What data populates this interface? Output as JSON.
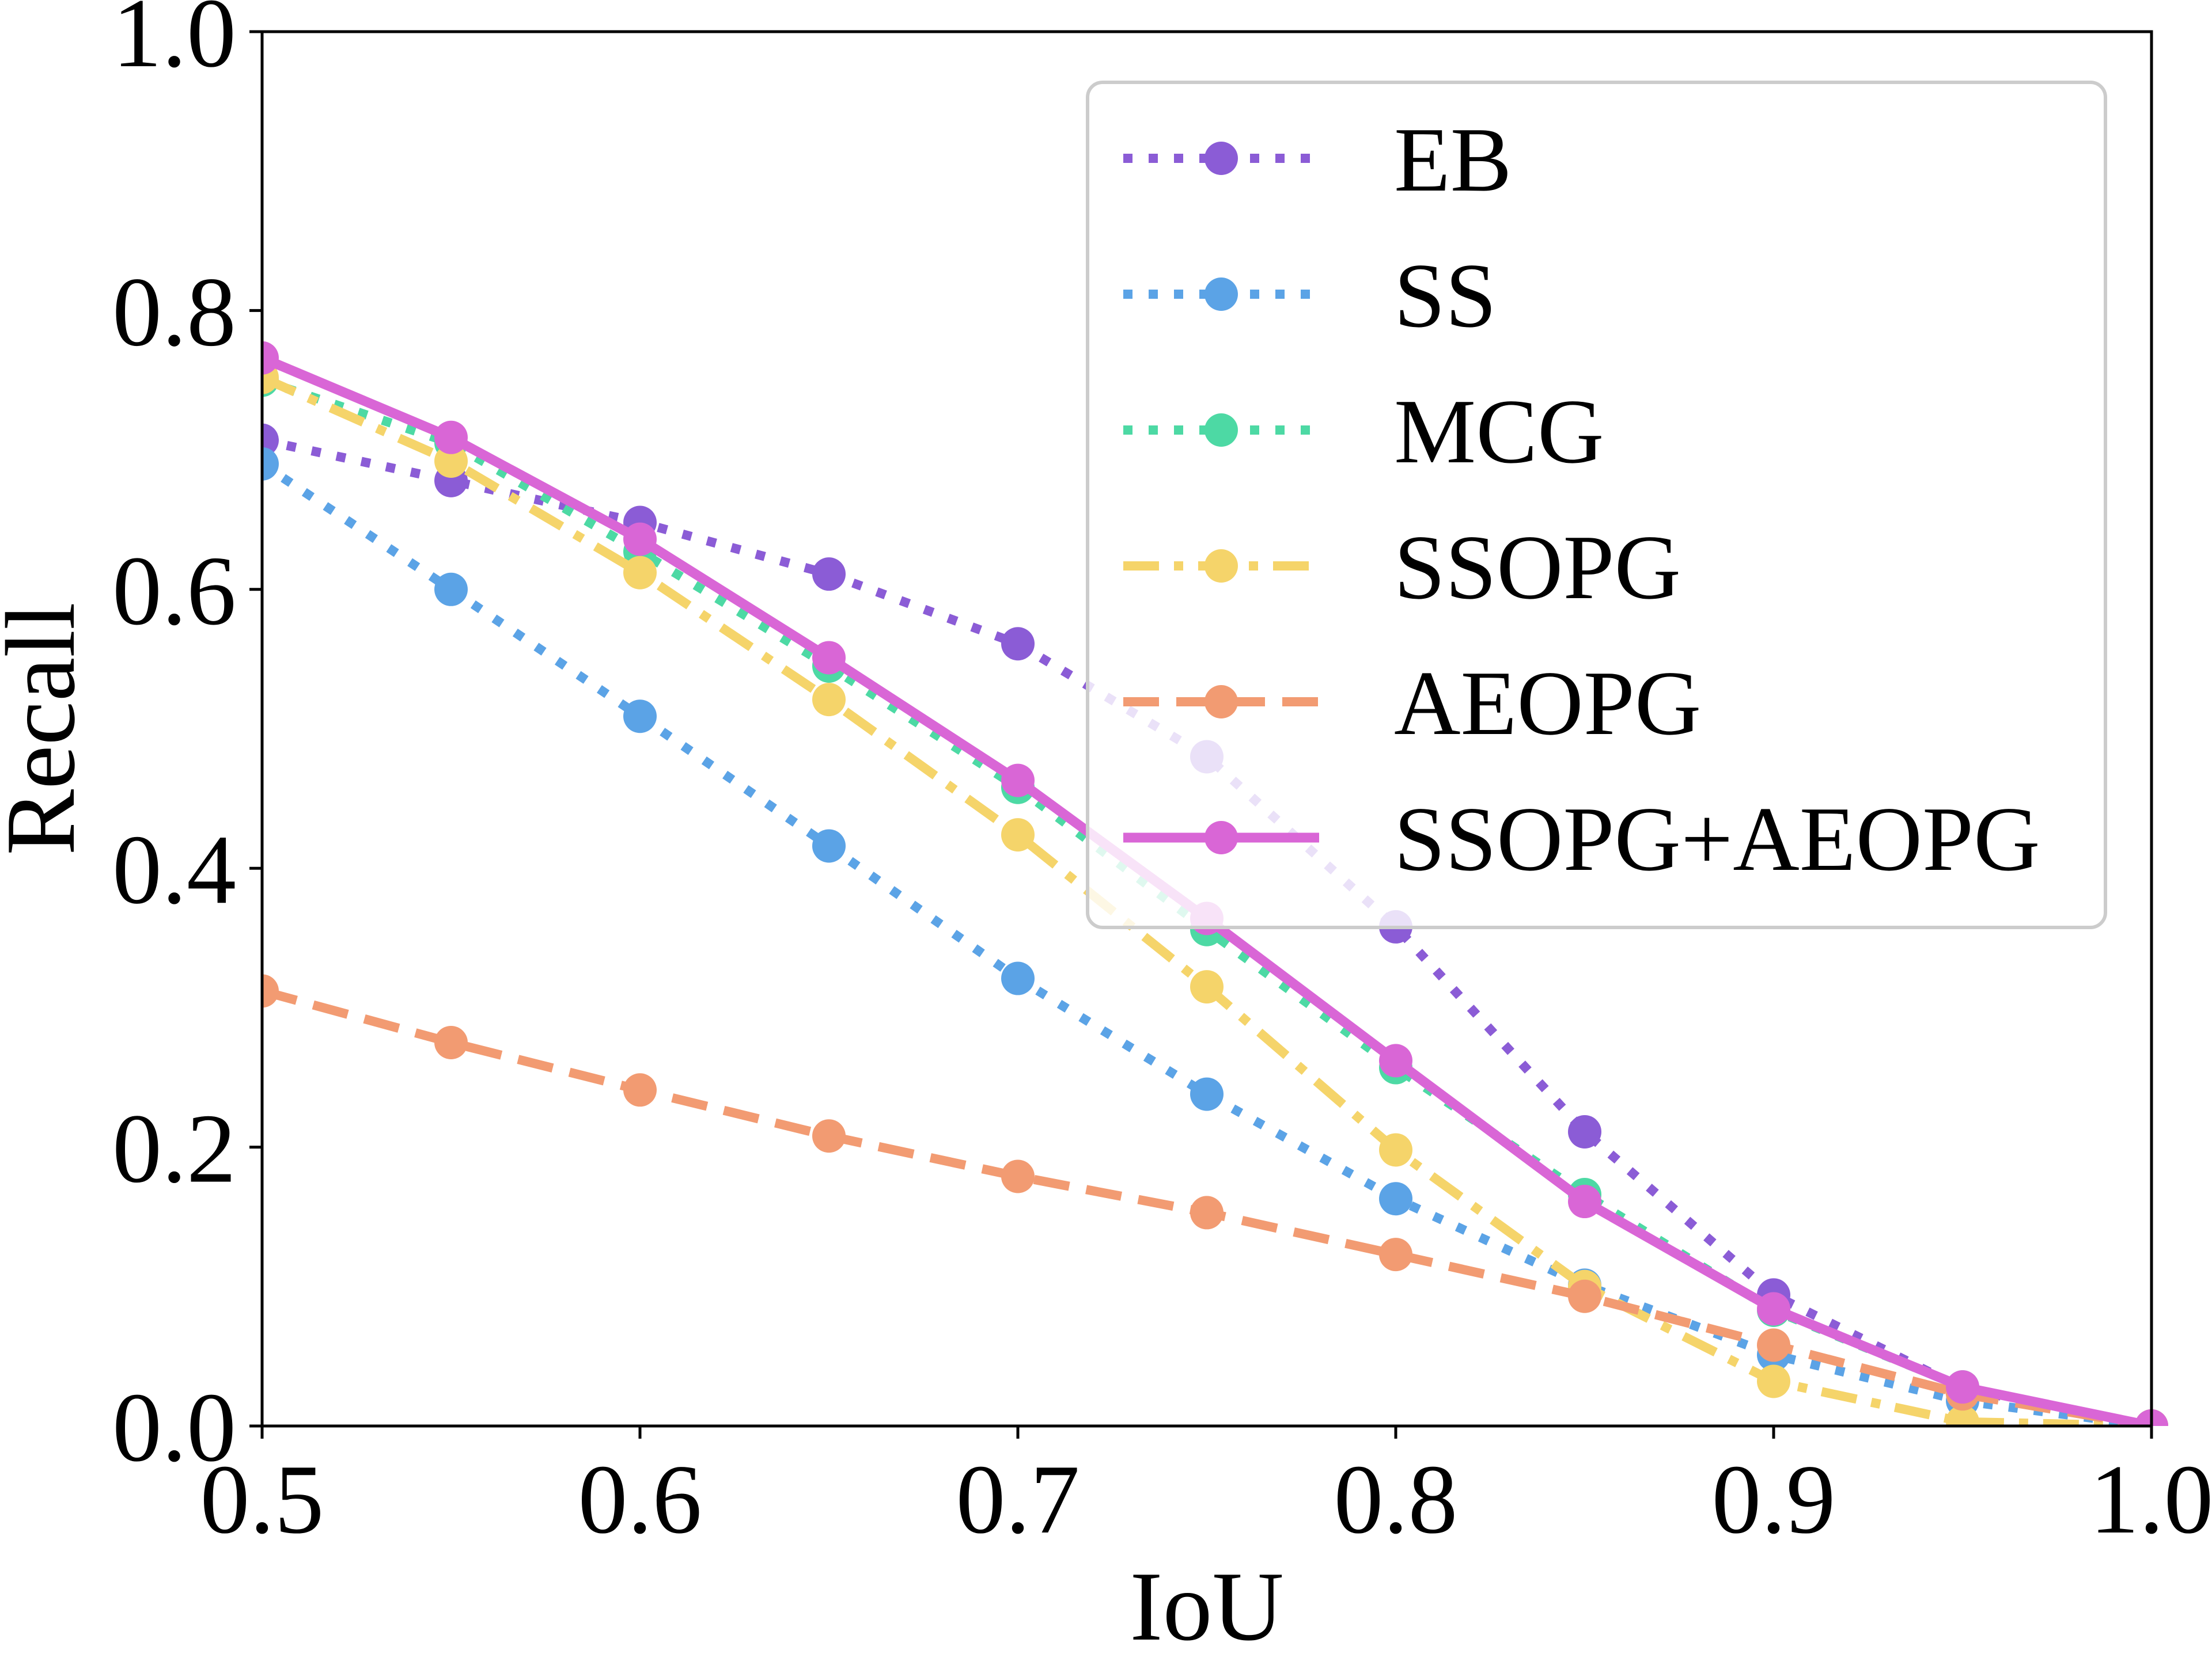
{
  "chart_data": {
    "type": "line",
    "title": "",
    "xlabel": "IoU",
    "ylabel": "Recall",
    "xlim": [
      0.5,
      1.0
    ],
    "ylim": [
      0.0,
      1.0
    ],
    "grid": false,
    "legend_position": "top-right",
    "x_ticks": [
      "0.5",
      "0.6",
      "0.7",
      "0.8",
      "0.9",
      "1.0"
    ],
    "y_ticks": [
      "0.0",
      "0.2",
      "0.4",
      "0.6",
      "0.8",
      "1.0"
    ],
    "x": [
      0.5,
      0.55,
      0.6,
      0.65,
      0.7,
      0.75,
      0.8,
      0.85,
      0.9,
      0.95,
      1.0
    ],
    "series": [
      {
        "name": "EB",
        "color": "#8b5cd6",
        "style": "dotted",
        "values": [
          0.707,
          0.678,
          0.648,
          0.611,
          0.561,
          0.48,
          0.358,
          0.211,
          0.094,
          0.027,
          0.0
        ]
      },
      {
        "name": "SS",
        "color": "#5ba3e6",
        "style": "dotted",
        "values": [
          0.69,
          0.6,
          0.509,
          0.416,
          0.321,
          0.238,
          0.163,
          0.101,
          0.051,
          0.018,
          0.0
        ]
      },
      {
        "name": "MCG",
        "color": "#4dd9a4",
        "style": "dotted",
        "values": [
          0.75,
          0.705,
          0.627,
          0.545,
          0.458,
          0.356,
          0.257,
          0.166,
          0.083,
          0.028,
          0.0
        ]
      },
      {
        "name": "SSOPG",
        "color": "#f5d46a",
        "style": "dashdot",
        "values": [
          0.752,
          0.692,
          0.612,
          0.521,
          0.424,
          0.315,
          0.198,
          0.1,
          0.032,
          0.003,
          0.0
        ]
      },
      {
        "name": "AEOPG",
        "color": "#f29b72",
        "style": "dashed",
        "values": [
          0.312,
          0.275,
          0.241,
          0.208,
          0.179,
          0.153,
          0.123,
          0.093,
          0.058,
          0.023,
          0.0
        ]
      },
      {
        "name": "SSOPG+AEOPG",
        "color": "#d966d6",
        "style": "solid",
        "values": [
          0.766,
          0.709,
          0.636,
          0.551,
          0.463,
          0.364,
          0.262,
          0.161,
          0.084,
          0.028,
          0.0
        ]
      }
    ]
  }
}
